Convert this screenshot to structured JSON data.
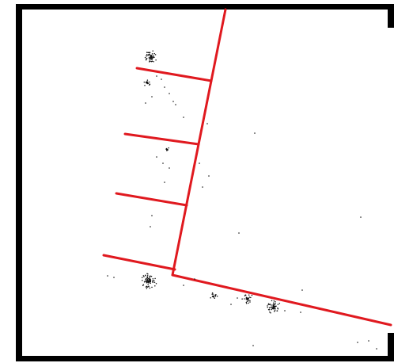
{
  "colors": {
    "background": "#ffffff",
    "frame": "#000000",
    "lines": "#e0191f",
    "dots": "#111111"
  }
}
